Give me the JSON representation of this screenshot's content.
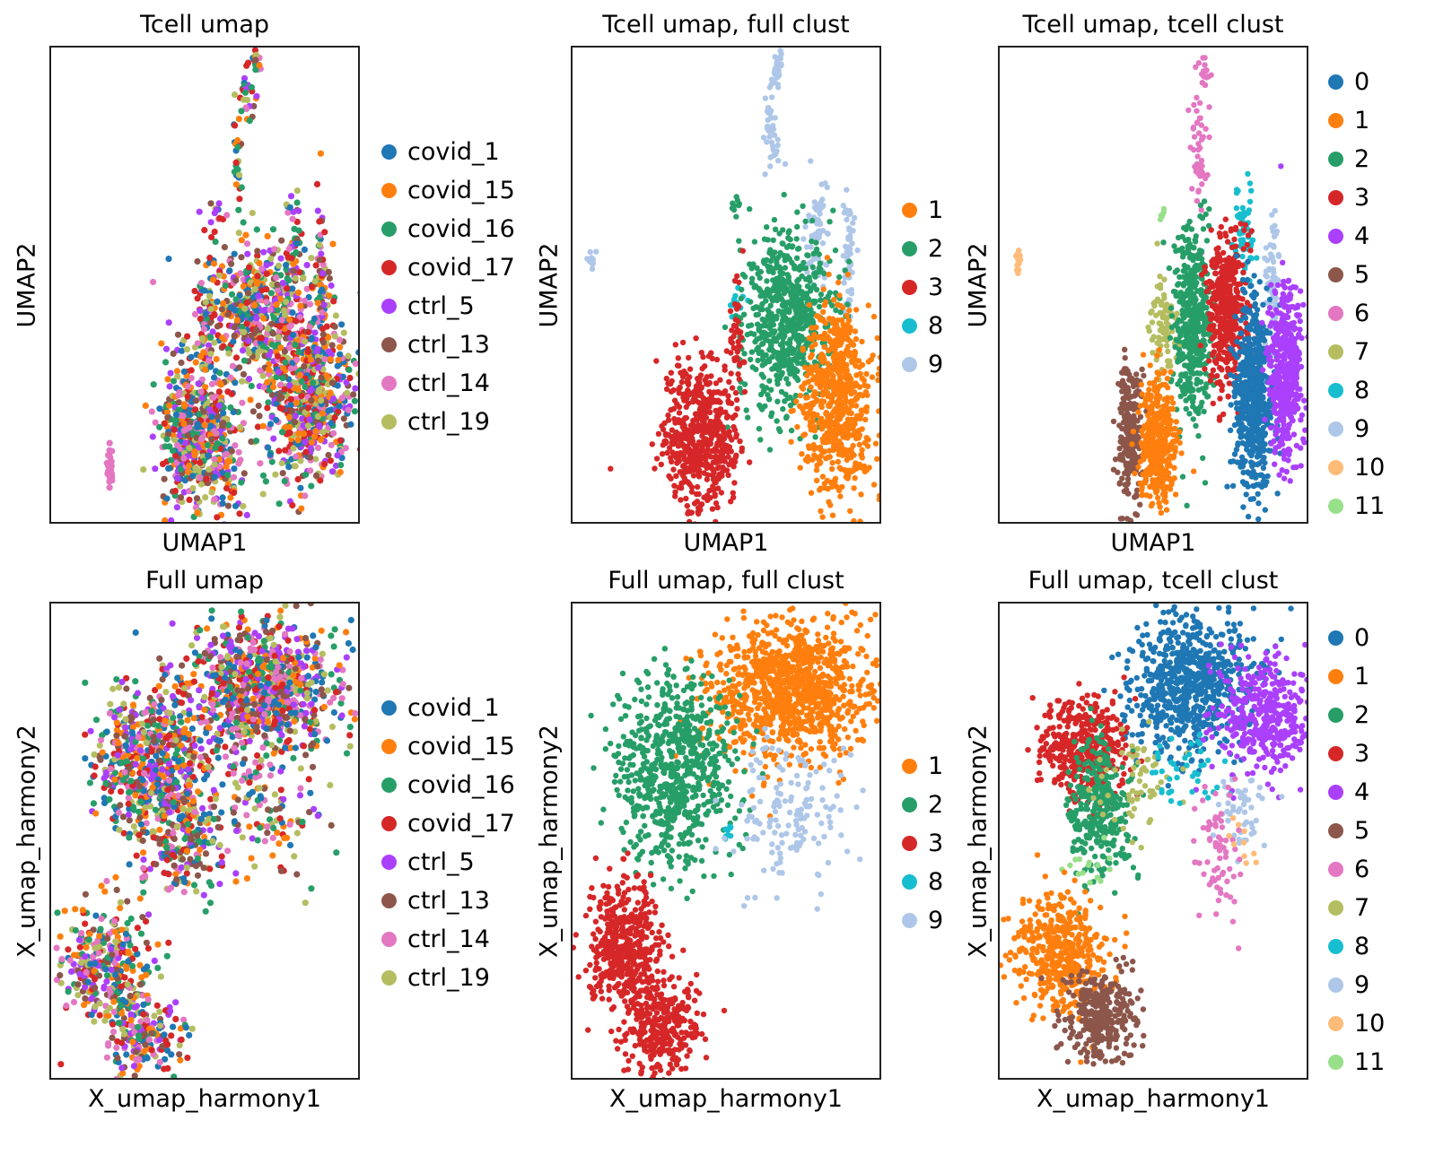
{
  "palette": {
    "covid_1": "#1f77b4",
    "covid_15": "#ff7f0e",
    "covid_16": "#279e68",
    "covid_17": "#d62728",
    "ctrl_5": "#aa40fc",
    "ctrl_13": "#8c564b",
    "ctrl_14": "#e377c2",
    "ctrl_19": "#b5bd61",
    "0": "#1f77b4",
    "1": "#ff7f0e",
    "2": "#279e68",
    "3": "#d62728",
    "4": "#aa40fc",
    "5": "#8c564b",
    "6": "#e377c2",
    "7": "#b5bd61",
    "8": "#17becf",
    "9": "#aec7e8",
    "10": "#ffbb78",
    "11": "#98df8a"
  },
  "chart_data": [
    {
      "type": "scatter",
      "title": "Tcell umap",
      "xlabel": "UMAP1",
      "ylabel": "UMAP2",
      "grid": false,
      "legend": {
        "placement": "right",
        "entries": [
          "covid_1",
          "covid_15",
          "covid_16",
          "covid_17",
          "ctrl_5",
          "ctrl_13",
          "ctrl_14",
          "ctrl_19"
        ]
      },
      "color_by": "sample",
      "mixed": true,
      "clusters": [
        {
          "label": "mixed",
          "x": 0.19,
          "y": 0.88,
          "sx": 0.005,
          "sy": 0.02,
          "n": 30,
          "colors": [
            "ctrl_14"
          ]
        },
        {
          "label": "mixed",
          "x": 0.66,
          "y": 0.03,
          "sx": 0.01,
          "sy": 0.01,
          "n": 15
        },
        {
          "label": "mixed",
          "x": 0.63,
          "y": 0.1,
          "sx": 0.012,
          "sy": 0.03,
          "n": 25
        },
        {
          "label": "mixed",
          "x": 0.6,
          "y": 0.22,
          "sx": 0.01,
          "sy": 0.05,
          "n": 25
        },
        {
          "label": "mixed",
          "x": 0.53,
          "y": 0.34,
          "sx": 0.01,
          "sy": 0.01,
          "n": 10
        },
        {
          "label": "mixed",
          "x": 0.65,
          "y": 0.55,
          "sx": 0.08,
          "sy": 0.07,
          "n": 450
        },
        {
          "label": "mixed",
          "x": 0.5,
          "y": 0.58,
          "sx": 0.02,
          "sy": 0.07,
          "n": 80
        },
        {
          "label": "mixed",
          "x": 0.78,
          "y": 0.42,
          "sx": 0.015,
          "sy": 0.06,
          "n": 50
        },
        {
          "label": "mixed",
          "x": 0.87,
          "y": 0.48,
          "sx": 0.012,
          "sy": 0.08,
          "n": 60
        },
        {
          "label": "mixed",
          "x": 0.43,
          "y": 0.81,
          "sx": 0.04,
          "sy": 0.08,
          "n": 300
        },
        {
          "label": "mixed",
          "x": 0.53,
          "y": 0.82,
          "sx": 0.04,
          "sy": 0.08,
          "n": 300
        },
        {
          "label": "mixed",
          "x": 0.83,
          "y": 0.72,
          "sx": 0.07,
          "sy": 0.1,
          "n": 700
        }
      ]
    },
    {
      "type": "scatter",
      "title": "Tcell umap, full clust",
      "xlabel": "UMAP1",
      "ylabel": "UMAP2",
      "grid": false,
      "legend": {
        "placement": "right",
        "entries": [
          "1",
          "2",
          "3",
          "8",
          "9"
        ]
      },
      "clusters": [
        {
          "label": "9",
          "x": 0.06,
          "y": 0.45,
          "sx": 0.005,
          "sy": 0.01,
          "n": 12
        },
        {
          "label": "9",
          "x": 0.66,
          "y": 0.05,
          "sx": 0.008,
          "sy": 0.02,
          "n": 25
        },
        {
          "label": "9",
          "x": 0.64,
          "y": 0.18,
          "sx": 0.012,
          "sy": 0.05,
          "n": 40
        },
        {
          "label": "2",
          "x": 0.53,
          "y": 0.33,
          "sx": 0.01,
          "sy": 0.01,
          "n": 8
        },
        {
          "label": "9",
          "x": 0.79,
          "y": 0.38,
          "sx": 0.02,
          "sy": 0.06,
          "n": 60
        },
        {
          "label": "9",
          "x": 0.89,
          "y": 0.45,
          "sx": 0.01,
          "sy": 0.07,
          "n": 50
        },
        {
          "label": "8",
          "x": 0.53,
          "y": 0.53,
          "sx": 0.015,
          "sy": 0.015,
          "n": 15
        },
        {
          "label": "2",
          "x": 0.69,
          "y": 0.57,
          "sx": 0.07,
          "sy": 0.09,
          "n": 650
        },
        {
          "label": "3",
          "x": 0.41,
          "y": 0.82,
          "sx": 0.06,
          "sy": 0.08,
          "n": 550
        },
        {
          "label": "3",
          "x": 0.53,
          "y": 0.6,
          "sx": 0.01,
          "sy": 0.06,
          "n": 40
        },
        {
          "label": "1",
          "x": 0.85,
          "y": 0.74,
          "sx": 0.055,
          "sy": 0.1,
          "n": 650
        }
      ]
    },
    {
      "type": "scatter",
      "title": "Tcell umap, tcell clust",
      "xlabel": "UMAP1",
      "ylabel": "UMAP2",
      "grid": false,
      "legend": {
        "placement": "right",
        "entries": [
          "0",
          "1",
          "2",
          "3",
          "4",
          "5",
          "6",
          "7",
          "8",
          "9",
          "10",
          "11"
        ]
      },
      "clusters": [
        {
          "label": "10",
          "x": 0.06,
          "y": 0.45,
          "sx": 0.005,
          "sy": 0.012,
          "n": 15
        },
        {
          "label": "6",
          "x": 0.66,
          "y": 0.05,
          "sx": 0.008,
          "sy": 0.015,
          "n": 15
        },
        {
          "label": "6",
          "x": 0.64,
          "y": 0.2,
          "sx": 0.012,
          "sy": 0.06,
          "n": 50
        },
        {
          "label": "11",
          "x": 0.52,
          "y": 0.35,
          "sx": 0.005,
          "sy": 0.008,
          "n": 8
        },
        {
          "label": "8",
          "x": 0.79,
          "y": 0.39,
          "sx": 0.015,
          "sy": 0.05,
          "n": 60
        },
        {
          "label": "9",
          "x": 0.88,
          "y": 0.48,
          "sx": 0.012,
          "sy": 0.08,
          "n": 60
        },
        {
          "label": "7",
          "x": 0.53,
          "y": 0.58,
          "sx": 0.02,
          "sy": 0.05,
          "n": 80
        },
        {
          "label": "2",
          "x": 0.62,
          "y": 0.58,
          "sx": 0.03,
          "sy": 0.1,
          "n": 450
        },
        {
          "label": "3",
          "x": 0.73,
          "y": 0.55,
          "sx": 0.03,
          "sy": 0.08,
          "n": 400
        },
        {
          "label": "0",
          "x": 0.82,
          "y": 0.72,
          "sx": 0.03,
          "sy": 0.1,
          "n": 600
        },
        {
          "label": "4",
          "x": 0.92,
          "y": 0.68,
          "sx": 0.025,
          "sy": 0.09,
          "n": 450
        },
        {
          "label": "5",
          "x": 0.42,
          "y": 0.81,
          "sx": 0.02,
          "sy": 0.07,
          "n": 250
        },
        {
          "label": "1",
          "x": 0.51,
          "y": 0.83,
          "sx": 0.03,
          "sy": 0.07,
          "n": 400
        }
      ]
    },
    {
      "type": "scatter",
      "title": "Full umap",
      "xlabel": "X_umap_harmony1",
      "ylabel": "X_umap_harmony2",
      "grid": false,
      "legend": {
        "placement": "right",
        "entries": [
          "covid_1",
          "covid_15",
          "covid_16",
          "covid_17",
          "ctrl_5",
          "ctrl_13",
          "ctrl_14",
          "ctrl_19"
        ]
      },
      "color_by": "sample",
      "mixed": true,
      "clusters": [
        {
          "label": "mixed",
          "x": 0.68,
          "y": 0.18,
          "sx": 0.12,
          "sy": 0.07,
          "n": 900
        },
        {
          "label": "mixed",
          "x": 0.32,
          "y": 0.33,
          "sx": 0.09,
          "sy": 0.08,
          "n": 600
        },
        {
          "label": "mixed",
          "x": 0.42,
          "y": 0.5,
          "sx": 0.07,
          "sy": 0.06,
          "n": 200
        },
        {
          "label": "mixed",
          "x": 0.68,
          "y": 0.45,
          "sx": 0.1,
          "sy": 0.07,
          "n": 120
        },
        {
          "label": "mixed",
          "x": 0.17,
          "y": 0.75,
          "sx": 0.07,
          "sy": 0.06,
          "n": 300
        },
        {
          "label": "mixed",
          "x": 0.3,
          "y": 0.9,
          "sx": 0.06,
          "sy": 0.04,
          "n": 200
        }
      ]
    },
    {
      "type": "scatter",
      "title": "Full umap, full clust",
      "xlabel": "X_umap_harmony1",
      "ylabel": "X_umap_harmony2",
      "grid": false,
      "legend": {
        "placement": "right",
        "entries": [
          "1",
          "2",
          "3",
          "8",
          "9"
        ]
      },
      "clusters": [
        {
          "label": "1",
          "x": 0.71,
          "y": 0.18,
          "sx": 0.13,
          "sy": 0.07,
          "n": 1000
        },
        {
          "label": "2",
          "x": 0.33,
          "y": 0.35,
          "sx": 0.09,
          "sy": 0.1,
          "n": 700
        },
        {
          "label": "8",
          "x": 0.5,
          "y": 0.47,
          "sx": 0.01,
          "sy": 0.015,
          "n": 8
        },
        {
          "label": "9",
          "x": 0.7,
          "y": 0.44,
          "sx": 0.09,
          "sy": 0.07,
          "n": 150
        },
        {
          "label": "3",
          "x": 0.17,
          "y": 0.72,
          "sx": 0.06,
          "sy": 0.07,
          "n": 450
        },
        {
          "label": "3",
          "x": 0.29,
          "y": 0.88,
          "sx": 0.06,
          "sy": 0.05,
          "n": 300
        }
      ]
    },
    {
      "type": "scatter",
      "title": "Full umap, tcell clust",
      "xlabel": "X_umap_harmony1",
      "ylabel": "X_umap_harmony2",
      "grid": false,
      "legend": {
        "placement": "right",
        "entries": [
          "0",
          "1",
          "2",
          "3",
          "4",
          "5",
          "6",
          "7",
          "8",
          "9",
          "10",
          "11"
        ]
      },
      "clusters": [
        {
          "label": "0",
          "x": 0.62,
          "y": 0.17,
          "sx": 0.1,
          "sy": 0.07,
          "n": 700
        },
        {
          "label": "4",
          "x": 0.85,
          "y": 0.24,
          "sx": 0.08,
          "sy": 0.06,
          "n": 400
        },
        {
          "label": "3",
          "x": 0.27,
          "y": 0.3,
          "sx": 0.07,
          "sy": 0.05,
          "n": 400
        },
        {
          "label": "2",
          "x": 0.32,
          "y": 0.43,
          "sx": 0.05,
          "sy": 0.07,
          "n": 300
        },
        {
          "label": "7",
          "x": 0.44,
          "y": 0.38,
          "sx": 0.06,
          "sy": 0.05,
          "n": 60
        },
        {
          "label": "8",
          "x": 0.6,
          "y": 0.35,
          "sx": 0.06,
          "sy": 0.04,
          "n": 40
        },
        {
          "label": "9",
          "x": 0.78,
          "y": 0.45,
          "sx": 0.05,
          "sy": 0.05,
          "n": 50
        },
        {
          "label": "6",
          "x": 0.7,
          "y": 0.52,
          "sx": 0.05,
          "sy": 0.08,
          "n": 70
        },
        {
          "label": "10",
          "x": 0.78,
          "y": 0.5,
          "sx": 0.03,
          "sy": 0.03,
          "n": 10
        },
        {
          "label": "11",
          "x": 0.28,
          "y": 0.55,
          "sx": 0.03,
          "sy": 0.03,
          "n": 15
        },
        {
          "label": "1",
          "x": 0.2,
          "y": 0.73,
          "sx": 0.07,
          "sy": 0.06,
          "n": 450
        },
        {
          "label": "5",
          "x": 0.32,
          "y": 0.87,
          "sx": 0.06,
          "sy": 0.05,
          "n": 300
        }
      ]
    }
  ]
}
